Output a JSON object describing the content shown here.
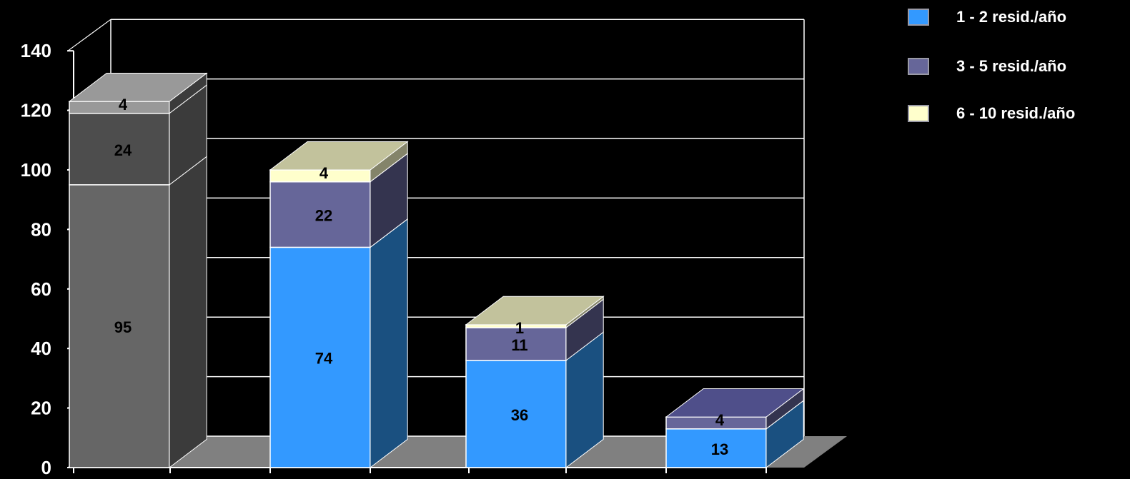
{
  "chart_data": {
    "type": "bar",
    "stacked": true,
    "three_d": true,
    "categories": [
      "",
      "",
      "",
      ""
    ],
    "series": [
      {
        "name": "1 - 2  resid./año",
        "values": [
          95,
          74,
          36,
          13
        ],
        "color": "#3399ff",
        "side_color": "#1a5080"
      },
      {
        "name": "3 - 5  resid./año",
        "values": [
          24,
          22,
          11,
          4
        ],
        "color": "#666699",
        "side_color": "#34344f"
      },
      {
        "name": "6 - 10 resid./año",
        "values": [
          4,
          4,
          1,
          0
        ],
        "color": "#ffffcc",
        "side_color": "#84846a"
      }
    ],
    "first_bar_colors": [
      "#666666",
      "#4d4d4d",
      "#999999"
    ],
    "y_ticks": [
      "0",
      "20",
      "40",
      "60",
      "80",
      "100",
      "120",
      "140"
    ],
    "ylim": [
      0,
      140
    ],
    "grid": true,
    "legend_position": "top-right",
    "background": "#000000",
    "floor_color": "#808080",
    "text_color": "#ffffff"
  }
}
